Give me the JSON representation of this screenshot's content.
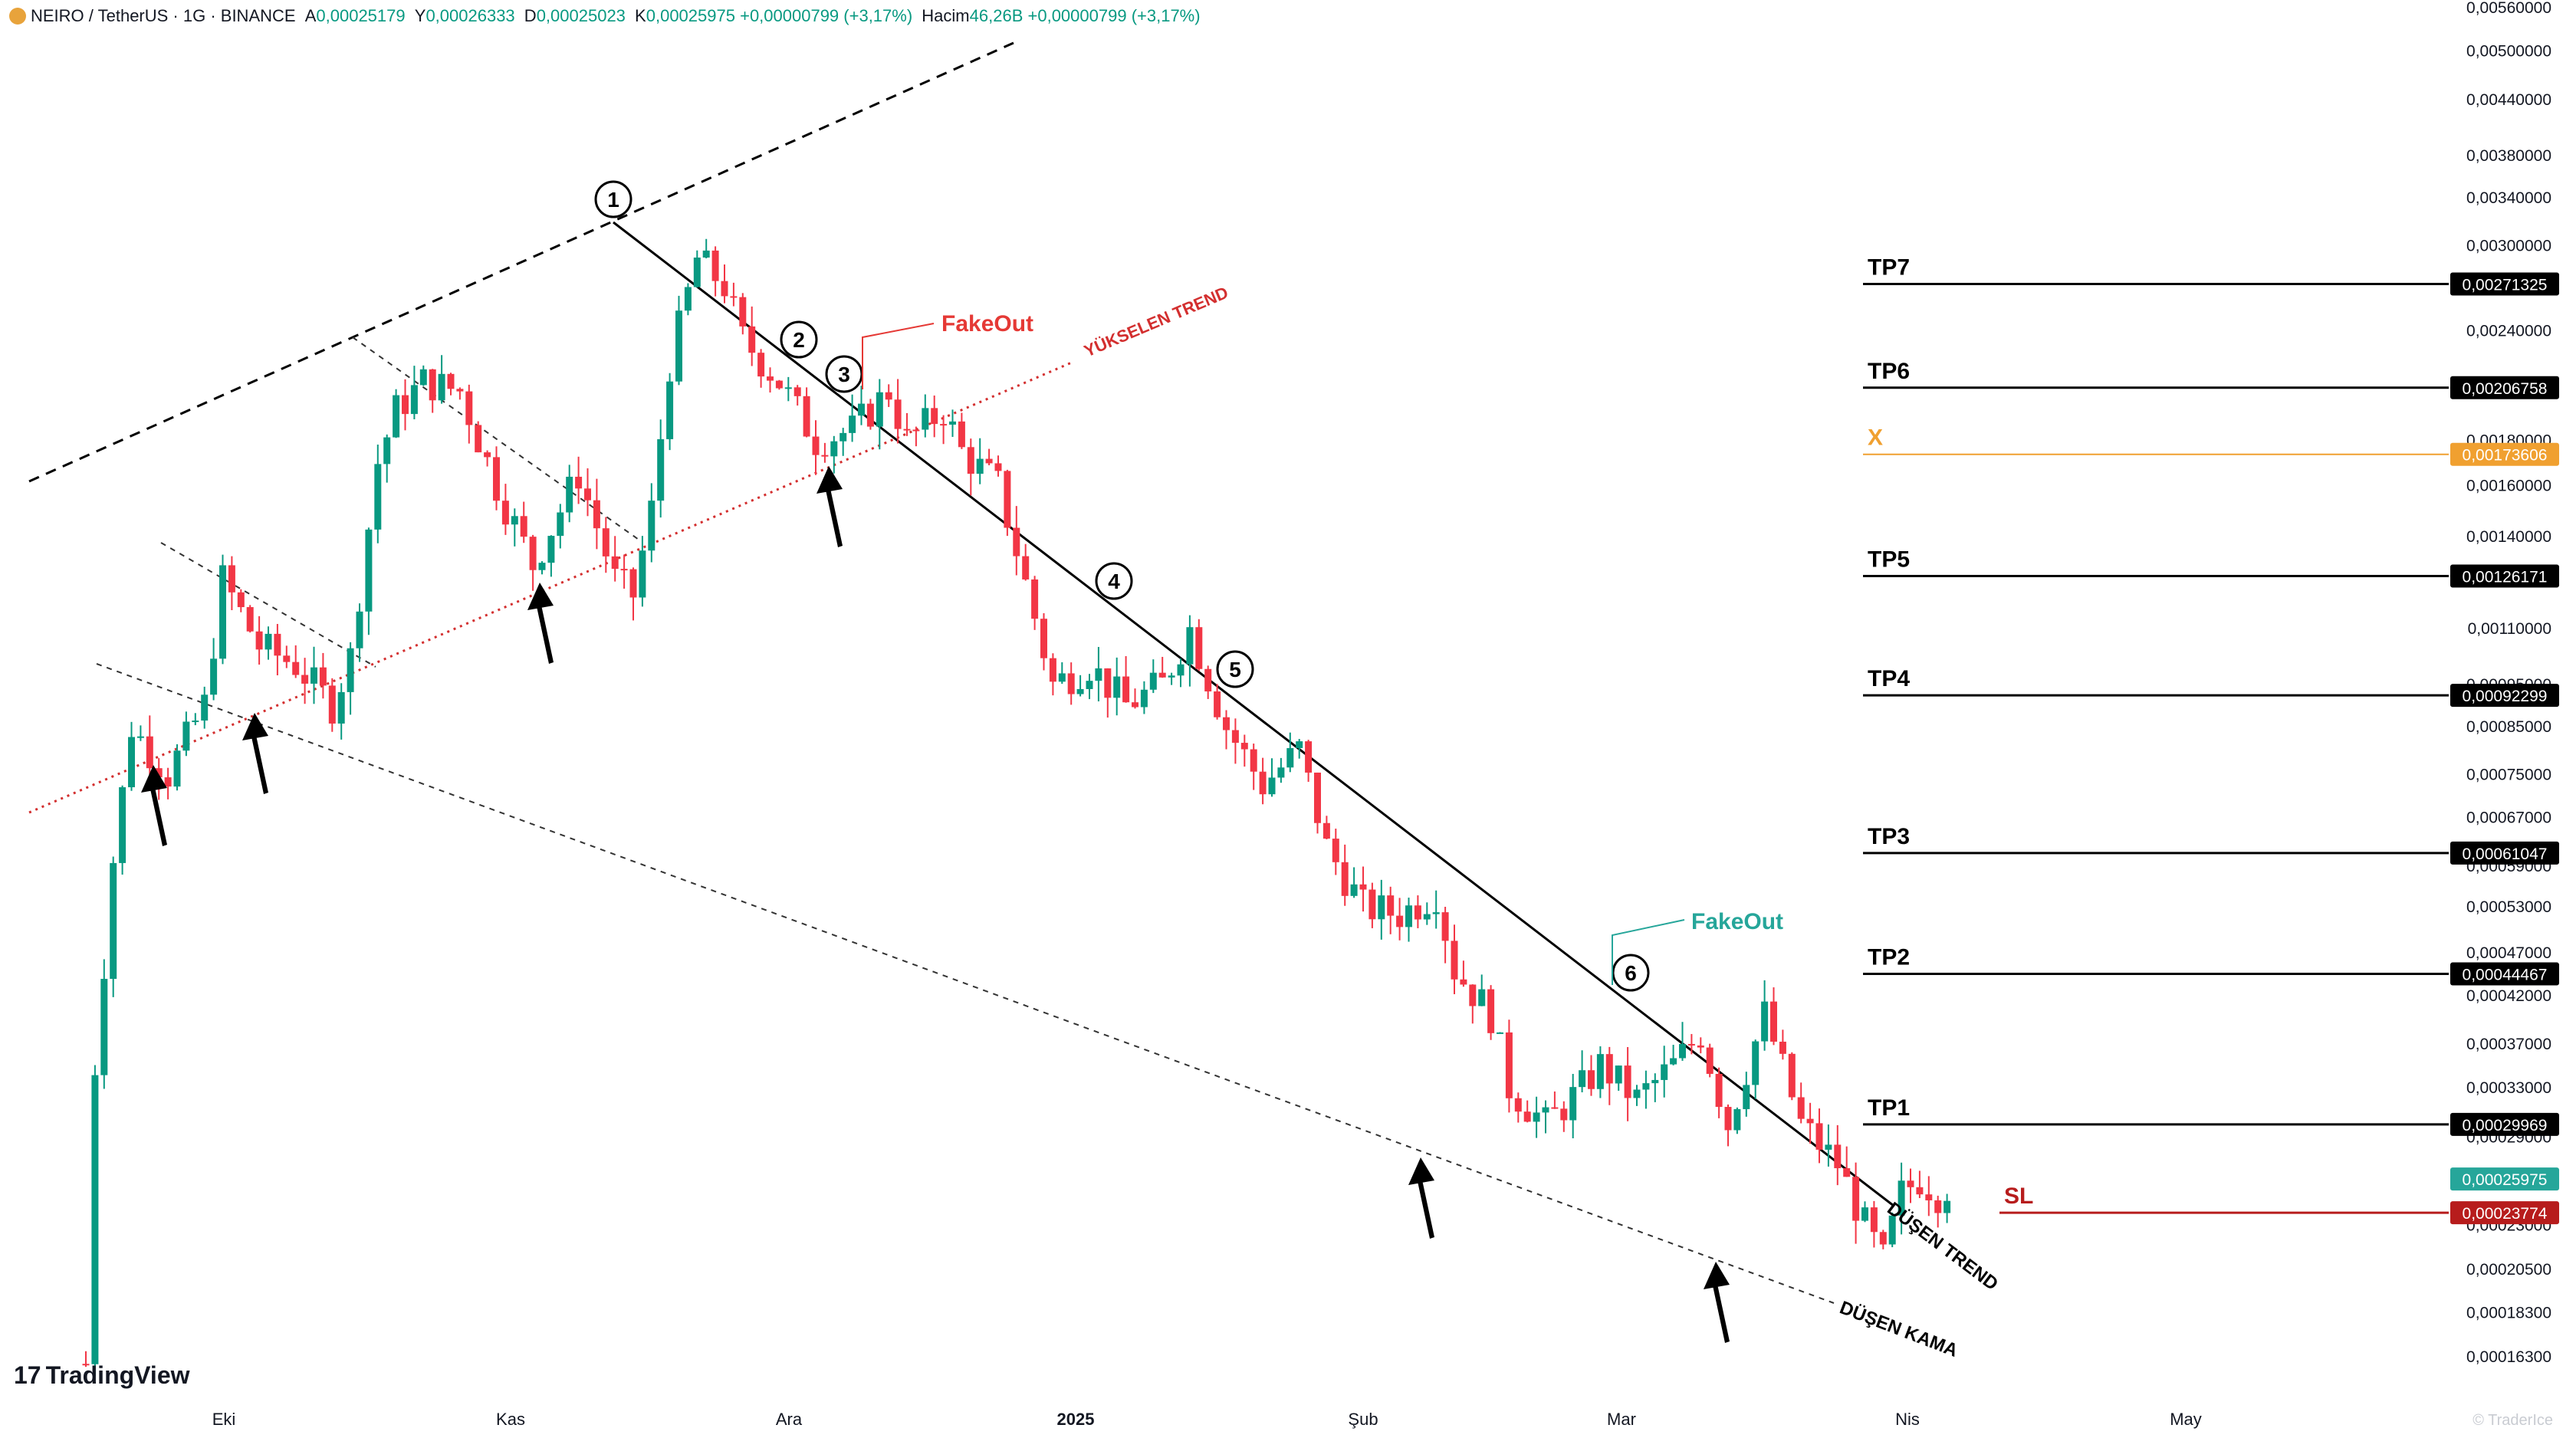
{
  "header": {
    "symbol": "NEIRO / TetherUS · 1G · BINANCE",
    "open_label": "A",
    "open": "0,00025179",
    "high_label": "Y",
    "high": "0,00026333",
    "low_label": "D",
    "low": "0,00025023",
    "close_label": "K",
    "close": "0,00025975",
    "change": "+0,00000799 (+3,17%)",
    "volume_label": "Hacim",
    "volume": "46,26B",
    "change2": "+0,00000799 (+3,17%)"
  },
  "brand": {
    "logo_text": "TradingView"
  },
  "watermark": "© TraderIce",
  "colors": {
    "up": "#089981",
    "down": "#f23645",
    "trend_red": "#d32f2f",
    "fakeout_red": "#e53935",
    "fakeout_green": "#26a69a",
    "x_orange": "#f0a030",
    "sl_red": "#b71c1c",
    "last_price": "#26a69a"
  },
  "chart_data": {
    "type": "candlestick",
    "symbol": "NEIRO / TetherUS",
    "interval": "1G",
    "exchange": "BINANCE",
    "y_scale": "log",
    "ylim": [
      0.000163,
      0.0056
    ],
    "y_ticks": [
      "0,00560000",
      "0,00500000",
      "0,00440000",
      "0,00380000",
      "0,00340000",
      "0,00300000",
      "0,00240000",
      "0,00180000",
      "0,00160000",
      "0,00140000",
      "0,00110000",
      "0,00095000",
      "0,00085000",
      "0,00075000",
      "0,00067000",
      "0,00059000",
      "0,00053000",
      "0,00047000",
      "0,00042000",
      "0,00037000",
      "0,00033000",
      "0,00029000",
      "0,00026000",
      "0,00023000",
      "0,00020500",
      "0,00018300",
      "0,00016300"
    ],
    "x_labels": [
      {
        "label": "Eki",
        "bold": false
      },
      {
        "label": "Kas",
        "bold": false
      },
      {
        "label": "Ara",
        "bold": false
      },
      {
        "label": "2025",
        "bold": true
      },
      {
        "label": "Şub",
        "bold": false
      },
      {
        "label": "Mar",
        "bold": false
      },
      {
        "label": "Nis",
        "bold": false
      },
      {
        "label": "May",
        "bold": false
      }
    ],
    "close_path": [
      [
        "2024-09-17",
        0.00016
      ],
      [
        "2024-09-18",
        0.00035
      ],
      [
        "2024-09-20",
        0.0006
      ],
      [
        "2024-09-22",
        0.00085
      ],
      [
        "2024-09-26",
        0.00075
      ],
      [
        "2024-09-30",
        0.0009
      ],
      [
        "2024-10-02",
        0.00125
      ],
      [
        "2024-10-06",
        0.00105
      ],
      [
        "2024-10-10",
        0.001
      ],
      [
        "2024-10-14",
        0.0009
      ],
      [
        "2024-10-16",
        0.00102
      ],
      [
        "2024-10-19",
        0.0017
      ],
      [
        "2024-10-21",
        0.00195
      ],
      [
        "2024-10-24",
        0.0021
      ],
      [
        "2024-10-28",
        0.00205
      ],
      [
        "2024-11-01",
        0.0016
      ],
      [
        "2024-11-05",
        0.0013
      ],
      [
        "2024-11-10",
        0.00165
      ],
      [
        "2024-11-14",
        0.00125
      ],
      [
        "2024-11-16",
        0.0012
      ],
      [
        "2024-11-18",
        0.0015
      ],
      [
        "2024-11-20",
        0.0022
      ],
      [
        "2024-11-23",
        0.0029
      ],
      [
        "2024-11-26",
        0.0027
      ],
      [
        "2024-11-28",
        0.00235
      ],
      [
        "2024-12-02",
        0.0021
      ],
      [
        "2024-12-06",
        0.0018
      ],
      [
        "2024-12-10",
        0.00185
      ],
      [
        "2024-12-14",
        0.00205
      ],
      [
        "2024-12-16",
        0.0018
      ],
      [
        "2024-12-20",
        0.00195
      ],
      [
        "2024-12-22",
        0.00175
      ],
      [
        "2024-12-26",
        0.0016
      ],
      [
        "2024-12-28",
        0.00135
      ],
      [
        "2025-01-01",
        0.00095
      ],
      [
        "2025-01-05",
        0.001
      ],
      [
        "2025-01-09",
        0.0009
      ],
      [
        "2025-01-13",
        0.00095
      ],
      [
        "2025-01-16",
        0.0011
      ],
      [
        "2025-01-20",
        0.00085
      ],
      [
        "2025-01-24",
        0.00073
      ],
      [
        "2025-01-28",
        0.0008
      ],
      [
        "2025-01-31",
        0.00062
      ],
      [
        "2025-02-04",
        0.00053
      ],
      [
        "2025-02-08",
        0.00052
      ],
      [
        "2025-02-12",
        0.00055
      ],
      [
        "2025-02-14",
        0.00045
      ],
      [
        "2025-02-18",
        0.0004
      ],
      [
        "2025-02-20",
        0.00033
      ],
      [
        "2025-02-24",
        0.0003
      ],
      [
        "2025-02-28",
        0.00033
      ],
      [
        "2025-03-02",
        0.00035
      ],
      [
        "2025-03-06",
        0.00032
      ],
      [
        "2025-03-10",
        0.00035
      ],
      [
        "2025-03-13",
        0.00038
      ],
      [
        "2025-03-16",
        0.0003
      ],
      [
        "2025-03-20",
        0.0004
      ],
      [
        "2025-03-24",
        0.0003
      ],
      [
        "2025-03-28",
        0.00027
      ],
      [
        "2025-03-31",
        0.00023
      ],
      [
        "2025-04-02",
        0.00021
      ],
      [
        "2025-04-04",
        0.00025
      ],
      [
        "2025-04-06",
        0.00026
      ],
      [
        "2025-04-08",
        0.00025
      ],
      [
        "2025-04-10",
        0.00026
      ]
    ],
    "levels": [
      {
        "label": "TP7",
        "value": "0,00271325",
        "color": "black"
      },
      {
        "label": "TP6",
        "value": "0,00206758",
        "color": "black"
      },
      {
        "label": "X",
        "value": "0,00173606",
        "color": "orange"
      },
      {
        "label": "TP5",
        "value": "0,00126171",
        "color": "black"
      },
      {
        "label": "TP4",
        "value": "0,00092299",
        "color": "black"
      },
      {
        "label": "TP3",
        "value": "0,00061047",
        "color": "black"
      },
      {
        "label": "TP2",
        "value": "0,00044467",
        "color": "black"
      },
      {
        "label": "TP1",
        "value": "0,00029969",
        "color": "black"
      },
      {
        "label": "SL",
        "value": "0,00023774",
        "color": "red"
      }
    ],
    "last_price": "0,00025975",
    "trendline_labels": {
      "rising": "YÜKSELEN TREND",
      "falling": "DÜŞEN TREND",
      "wedge": "DÜŞEN KAMA"
    },
    "touch_points": [
      "1",
      "2",
      "3",
      "4",
      "5",
      "6"
    ],
    "annotations": {
      "fakeout_1": "FakeOut",
      "fakeout_2": "FakeOut"
    }
  }
}
